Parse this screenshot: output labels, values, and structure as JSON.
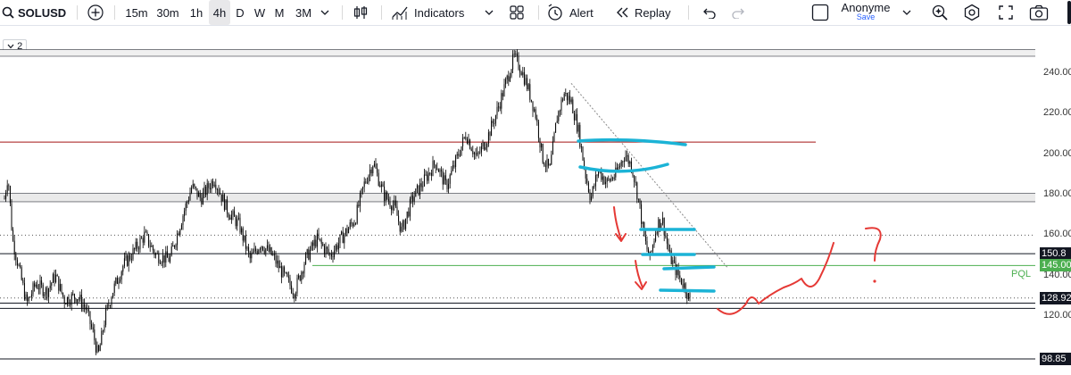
{
  "toolbar": {
    "symbol": "SOLUSD",
    "intervals": [
      "15m",
      "30m",
      "1h",
      "4h",
      "D",
      "W",
      "M",
      "3M"
    ],
    "active_interval": "4h",
    "indicators_label": "Indicators",
    "alert_label": "Alert",
    "replay_label": "Replay",
    "layout_name": "Anonyme",
    "layout_status": "Save"
  },
  "legend": {
    "collapse_count": "2"
  },
  "price_axis": {
    "ticks": [
      "240.00",
      "220.00",
      "200.00",
      "180.00",
      "160.00",
      "140.00",
      "120.00"
    ],
    "labels": [
      {
        "text": "150.8",
        "style": "dark"
      },
      {
        "text": "145.00",
        "style": "green"
      },
      {
        "text": "128.92",
        "style": "dark"
      },
      {
        "text": "98.85",
        "style": "dark"
      }
    ]
  },
  "annotations": {
    "pql_label": "PQL"
  },
  "colors": {
    "candle": "#000000",
    "red_line": "#a31515",
    "green_line": "#4caf50",
    "cyan_marker": "#1bb3d6",
    "red_marker": "#e53935"
  }
}
